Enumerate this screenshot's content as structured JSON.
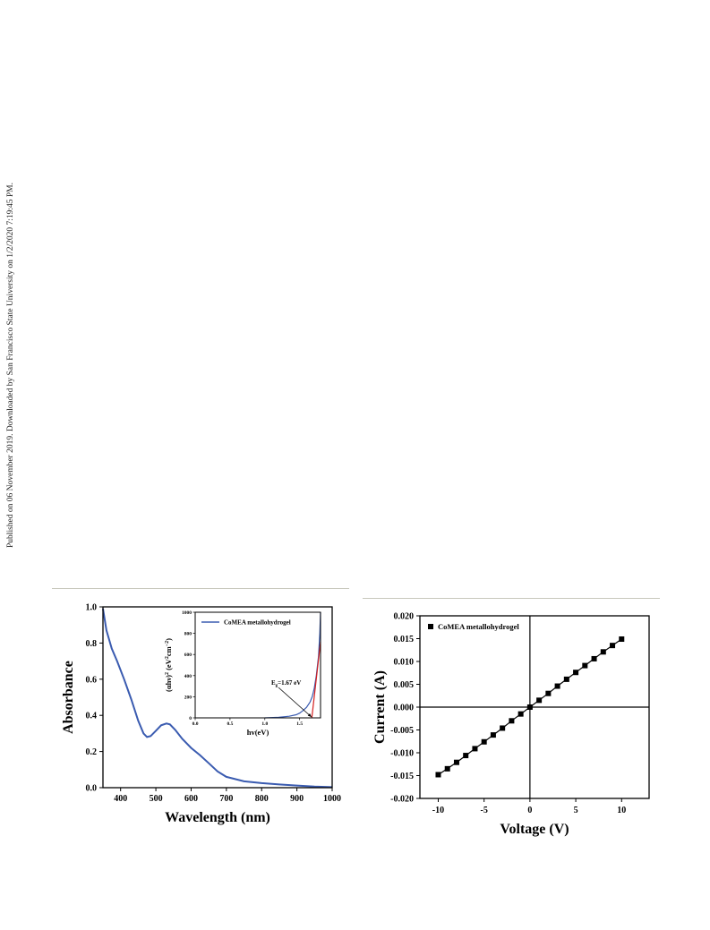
{
  "side_note": "Published on 06 November 2019. Downloaded by San Francisco State University on 1/2/2020 7:19:45 PM.",
  "colors": {
    "curve": "#3a5bb0",
    "fit_line": "#d42020",
    "points": "#000000"
  },
  "chart_data": [
    {
      "type": "line",
      "xlabel": "Wavelength (nm)",
      "ylabel": "Absorbance",
      "xlim": [
        350,
        1000
      ],
      "ylim": [
        0.0,
        1.0
      ],
      "xticks": [
        "400",
        "500",
        "600",
        "700",
        "800",
        "900",
        "1000"
      ],
      "yticks": [
        "0.0",
        "0.2",
        "0.4",
        "0.6",
        "0.8",
        "1.0"
      ],
      "x": [
        350,
        360,
        375,
        390,
        410,
        430,
        450,
        465,
        475,
        485,
        500,
        515,
        530,
        540,
        555,
        575,
        600,
        625,
        650,
        675,
        700,
        750,
        800,
        850,
        900,
        950,
        1000
      ],
      "y": [
        0.99,
        0.87,
        0.77,
        0.7,
        0.6,
        0.49,
        0.37,
        0.3,
        0.28,
        0.285,
        0.315,
        0.345,
        0.355,
        0.35,
        0.32,
        0.27,
        0.22,
        0.18,
        0.135,
        0.09,
        0.06,
        0.035,
        0.025,
        0.018,
        0.012,
        0.006,
        0.003
      ],
      "grid": false,
      "inset": {
        "type": "line",
        "legend": "CoMEA metallohydrogel",
        "legend_position": "top-left",
        "xlabel": "hv(eV)",
        "ylabel": "(αhv)² (eV² cm⁻²)",
        "ylabel_parts": {
          "a": "(αhν)",
          "a_sup": "2",
          "b": " (eV",
          "b_sup": "2",
          "c": "cm",
          "c_sup": "−2",
          "d": ")"
        },
        "xlim": [
          0.0,
          1.8
        ],
        "ylim": [
          0,
          1000
        ],
        "xticks": [
          "0.0",
          "0.5",
          "1.0",
          "1.5"
        ],
        "yticks": [
          "0",
          "200",
          "400",
          "600",
          "800",
          "1000"
        ],
        "x": [
          1.0,
          1.2,
          1.35,
          1.45,
          1.5,
          1.55,
          1.6,
          1.65,
          1.68,
          1.71,
          1.74,
          1.77,
          1.79,
          1.8
        ],
        "y": [
          0,
          5,
          15,
          30,
          45,
          70,
          100,
          150,
          200,
          280,
          400,
          580,
          800,
          1000
        ],
        "fit_x": [
          1.675,
          1.8
        ],
        "fit_y": [
          0,
          720
        ],
        "annotation": {
          "pre": "E",
          "sub": "g",
          "post": "=1.67 eV",
          "arrow_to": [
            1.67,
            0
          ]
        }
      }
    },
    {
      "type": "scatter",
      "legend": "CoMEA metallohydrogel",
      "legend_position": "top-left",
      "xlabel": "Voltage (V)",
      "ylabel": "Current (A)",
      "xlim": [
        -12,
        13
      ],
      "ylim": [
        -0.02,
        0.02
      ],
      "xticks": [
        "-10",
        "-5",
        "0",
        "5",
        "10"
      ],
      "yticks": [
        "0.020",
        "0.015",
        "0.010",
        "0.005",
        "0.000",
        "-0.005",
        "-0.010",
        "-0.015",
        "-0.020"
      ],
      "x": [
        -10,
        -9,
        -8,
        -7,
        -6,
        -5,
        -4,
        -3,
        -2,
        -1,
        0,
        1,
        2,
        3,
        4,
        5,
        6,
        7,
        8,
        9,
        10
      ],
      "y": [
        -0.0148,
        -0.0135,
        -0.0121,
        -0.0106,
        -0.0091,
        -0.0076,
        -0.0061,
        -0.0046,
        -0.003,
        -0.0015,
        0.0,
        0.0015,
        0.003,
        0.0046,
        0.0061,
        0.0076,
        0.0091,
        0.0106,
        0.0121,
        0.0135,
        0.0149
      ],
      "grid": false
    }
  ]
}
